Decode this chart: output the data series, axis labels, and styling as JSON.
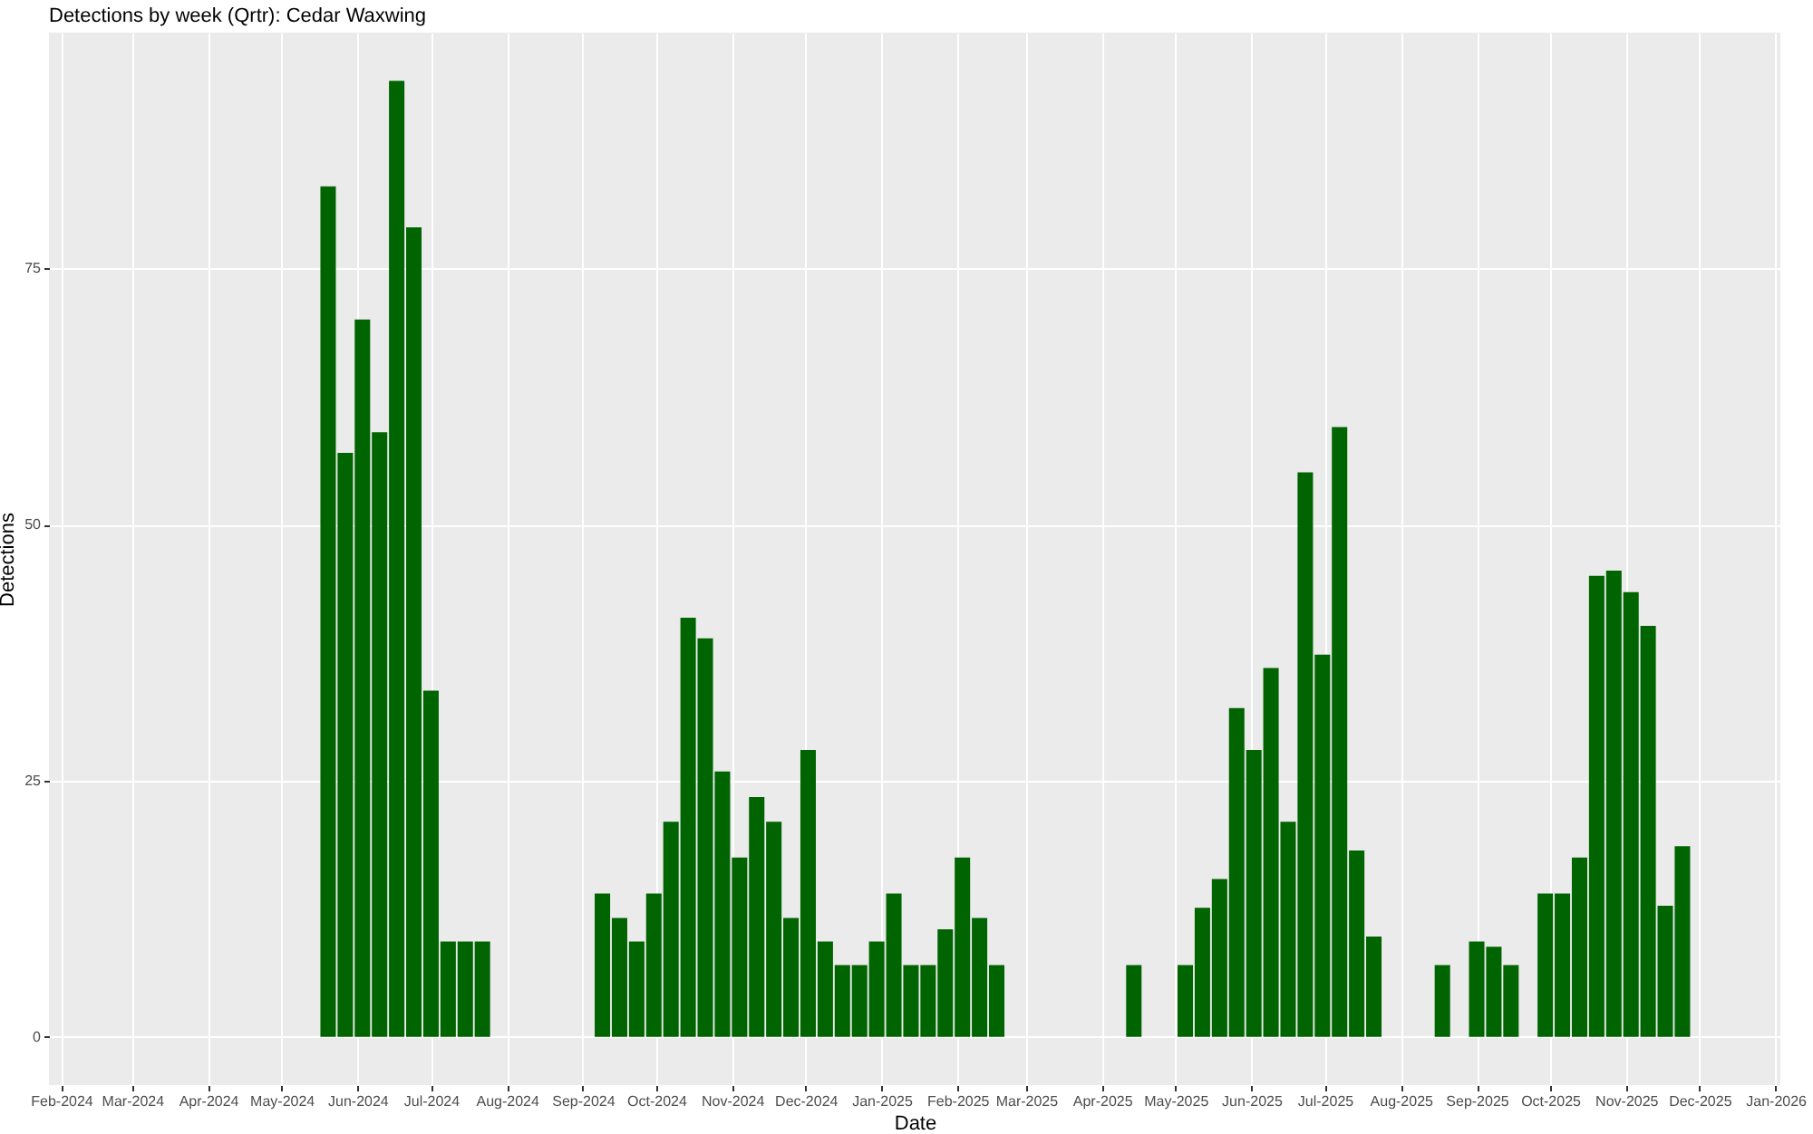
{
  "chart_data": {
    "type": "bar",
    "title": "Detections by week (Qrtr): Cedar Waxwing",
    "xlabel": "Date",
    "ylabel": "Detections",
    "x": [
      "2024-05-20",
      "2024-05-27",
      "2024-06-03",
      "2024-06-10",
      "2024-06-17",
      "2024-06-24",
      "2024-07-01",
      "2024-07-08",
      "2024-07-15",
      "2024-07-22",
      "2024-09-09",
      "2024-09-16",
      "2024-09-23",
      "2024-09-30",
      "2024-10-07",
      "2024-10-14",
      "2024-10-21",
      "2024-10-28",
      "2024-11-04",
      "2024-11-11",
      "2024-11-18",
      "2024-11-25",
      "2024-12-02",
      "2024-12-09",
      "2024-12-16",
      "2024-12-23",
      "2024-12-30",
      "2025-01-06",
      "2025-01-13",
      "2025-01-20",
      "2025-01-27",
      "2025-02-03",
      "2025-02-10",
      "2025-02-17",
      "2025-04-14",
      "2025-05-05",
      "2025-05-12",
      "2025-05-19",
      "2025-05-26",
      "2025-06-02",
      "2025-06-09",
      "2025-06-16",
      "2025-06-23",
      "2025-06-30",
      "2025-07-07",
      "2025-07-14",
      "2025-07-21",
      "2025-08-18",
      "2025-09-01",
      "2025-09-08",
      "2025-09-15",
      "2025-09-29",
      "2025-10-06",
      "2025-10-13",
      "2025-10-20",
      "2025-10-27",
      "2025-11-03",
      "2025-11-10",
      "2025-11-17",
      "2025-11-24"
    ],
    "values": [
      83,
      57,
      70,
      59,
      93.3,
      79,
      33.8,
      9.3,
      9.3,
      9.3,
      14,
      11.6,
      9.3,
      14,
      21,
      40.9,
      38.9,
      25.9,
      17.5,
      23.4,
      21,
      11.6,
      28,
      9.3,
      7,
      7,
      9.3,
      14,
      7,
      7,
      10.5,
      17.5,
      11.6,
      7,
      7,
      7,
      12.6,
      15.4,
      32.1,
      28,
      36,
      21,
      55.1,
      37.3,
      59.5,
      18.2,
      9.8,
      7,
      9.3,
      8.8,
      7,
      14,
      14,
      17.5,
      45,
      45.5,
      43.4,
      40.1,
      12.8,
      18.6
    ],
    "color": "#006400",
    "xlim": [
      "2024-01-27",
      "2026-01-03"
    ],
    "xticks": [
      {
        "value": "2024-02-01",
        "label": "Feb-2024"
      },
      {
        "value": "2024-03-01",
        "label": "Mar-2024"
      },
      {
        "value": "2024-04-01",
        "label": "Apr-2024"
      },
      {
        "value": "2024-05-01",
        "label": "May-2024"
      },
      {
        "value": "2024-06-01",
        "label": "Jun-2024"
      },
      {
        "value": "2024-07-01",
        "label": "Jul-2024"
      },
      {
        "value": "2024-08-01",
        "label": "Aug-2024"
      },
      {
        "value": "2024-09-01",
        "label": "Sep-2024"
      },
      {
        "value": "2024-10-01",
        "label": "Oct-2024"
      },
      {
        "value": "2024-11-01",
        "label": "Nov-2024"
      },
      {
        "value": "2024-12-01",
        "label": "Dec-2024"
      },
      {
        "value": "2025-01-01",
        "label": "Jan-2025"
      },
      {
        "value": "2025-02-01",
        "label": "Feb-2025"
      },
      {
        "value": "2025-03-01",
        "label": "Mar-2025"
      },
      {
        "value": "2025-04-01",
        "label": "Apr-2025"
      },
      {
        "value": "2025-05-01",
        "label": "May-2025"
      },
      {
        "value": "2025-06-01",
        "label": "Jun-2025"
      },
      {
        "value": "2025-07-01",
        "label": "Jul-2025"
      },
      {
        "value": "2025-08-01",
        "label": "Aug-2025"
      },
      {
        "value": "2025-09-01",
        "label": "Sep-2025"
      },
      {
        "value": "2025-10-01",
        "label": "Oct-2025"
      },
      {
        "value": "2025-11-01",
        "label": "Nov-2025"
      },
      {
        "value": "2025-12-01",
        "label": "Dec-2025"
      },
      {
        "value": "2026-01-01",
        "label": "Jan-2026"
      }
    ],
    "ylim": [
      -4.7,
      98
    ],
    "yticks": [
      0,
      25,
      50,
      75
    ],
    "grid": true
  }
}
